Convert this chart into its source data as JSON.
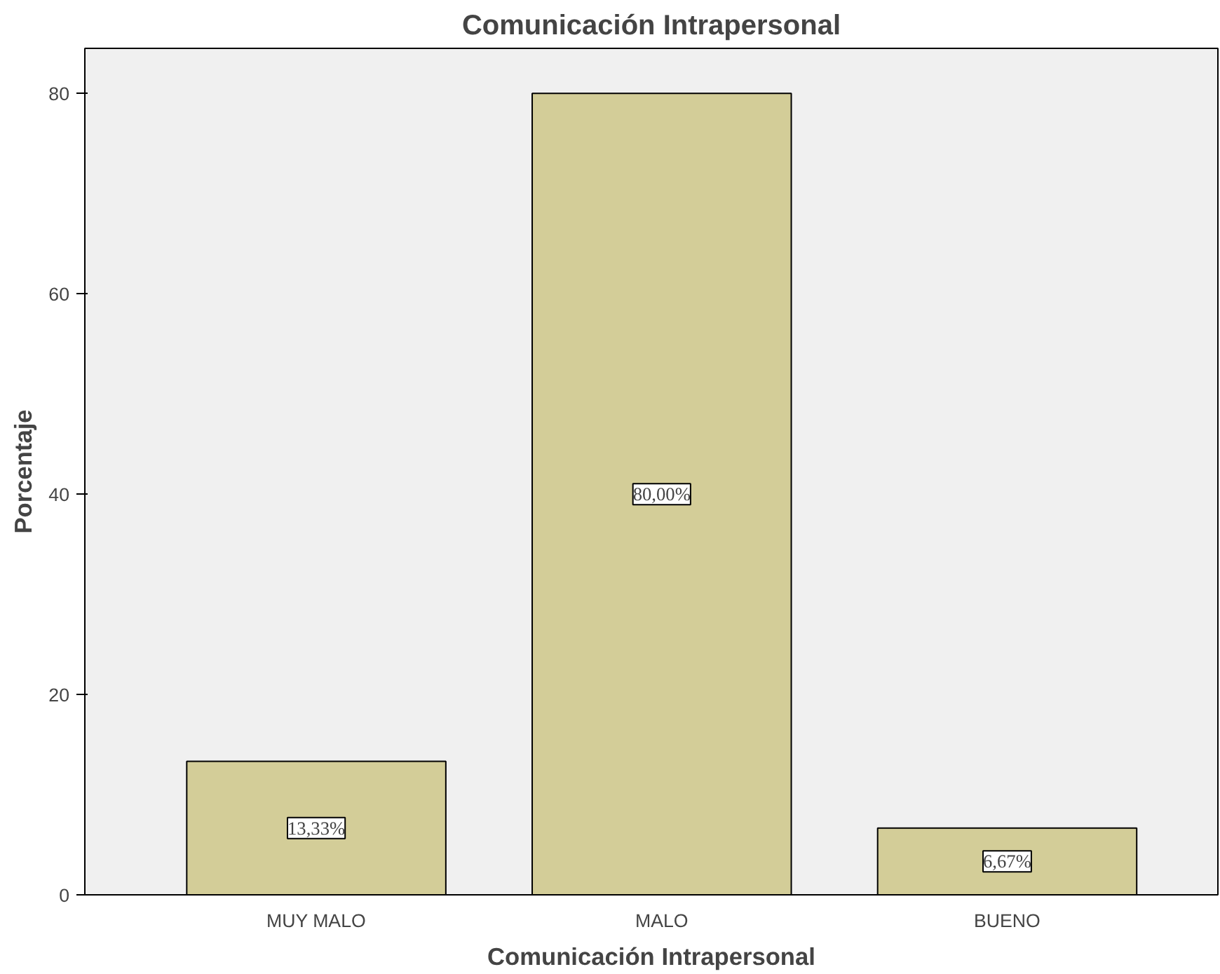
{
  "chart_data": {
    "type": "bar",
    "title": "Comunicación Intrapersonal",
    "xlabel": "Comunicación Intrapersonal",
    "ylabel": "Porcentaje",
    "categories": [
      "MUY MALO",
      "MALO",
      "BUENO"
    ],
    "values": [
      13.33,
      80.0,
      6.67
    ],
    "value_labels": [
      "13,33%",
      "80,00%",
      "6,67%"
    ],
    "color": "#d3cd98",
    "ylim": [
      0,
      84.5
    ],
    "yticks": [
      0,
      20,
      40,
      60,
      80
    ],
    "grid": false
  }
}
